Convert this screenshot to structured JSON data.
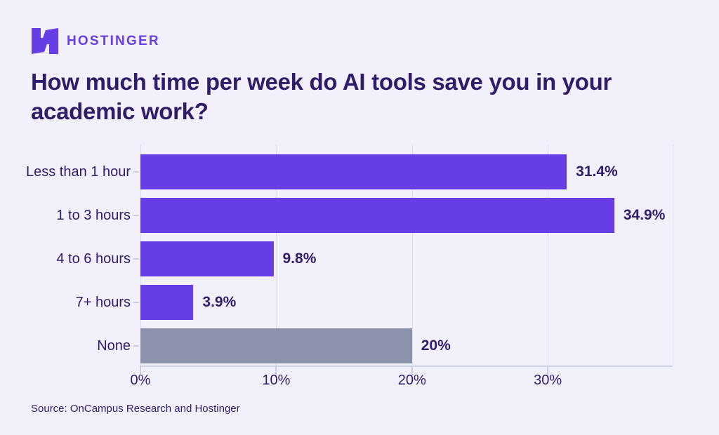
{
  "brand": {
    "name": "HOSTINGER",
    "logo_icon": "hostinger-logo-icon",
    "accent_color": "#673de6"
  },
  "header": {
    "title": "How much time per week do AI tools save you in your academic work?"
  },
  "footer": {
    "source": "Source: OnCampus Research and Hostinger"
  },
  "colors": {
    "background": "#f2f1fb",
    "text_dark": "#2f1c6a",
    "bar_purple": "#673de6",
    "bar_gray": "#8c92a9",
    "gridline": "#d9ddf1",
    "axis_line": "#ccd2e8"
  },
  "chart_data": {
    "type": "bar",
    "orientation": "horizontal",
    "title": "How much time per week do AI tools save you in your academic work?",
    "categories": [
      "Less than 1 hour",
      "1 to 3 hours",
      "4 to 6 hours",
      "7+ hours",
      "None"
    ],
    "values": [
      31.4,
      34.9,
      9.8,
      3.9,
      20
    ],
    "value_labels": [
      "31.4%",
      "34.9%",
      "9.8%",
      "3.9%",
      "20%"
    ],
    "bar_colors": [
      "#673de6",
      "#673de6",
      "#673de6",
      "#673de6",
      "#8c92a9"
    ],
    "x_ticks": [
      {
        "value": 0,
        "label": "0%"
      },
      {
        "value": 10,
        "label": "10%"
      },
      {
        "value": 20,
        "label": "20%"
      },
      {
        "value": 30,
        "label": "30%"
      }
    ],
    "xlim": [
      0,
      39.2
    ],
    "grid": true,
    "legend": false,
    "source": "Source: OnCampus Research and Hostinger"
  }
}
